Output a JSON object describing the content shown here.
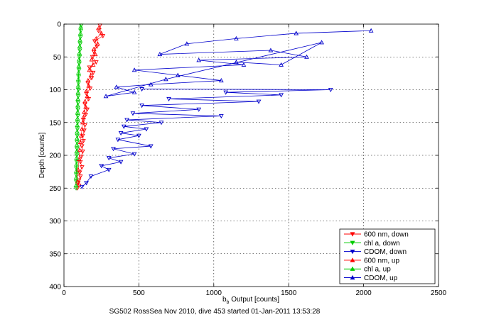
{
  "chart_data": {
    "type": "scatter",
    "title": "",
    "xlabel_main": "b",
    "xlabel_sub": "b",
    "xlabel_rest": " Output [counts]",
    "ylabel": "Depth [counts]",
    "caption": "SG502 RossSea Nov 2010, dive 453 started 01-Jan-2011 13:53:28",
    "xlim": [
      0,
      2500
    ],
    "ylim": [
      0,
      400
    ],
    "y_reversed": true,
    "grid": true,
    "legend_position": "bottom-right",
    "xticks": [
      "0",
      "500",
      "1000",
      "1500",
      "2000",
      "2500"
    ],
    "yticks": [
      "0",
      "50",
      "100",
      "150",
      "200",
      "250",
      "300",
      "350",
      "400"
    ],
    "series": [
      {
        "name": "600 nm, down",
        "color": "#ff0000",
        "marker": "triangle-down",
        "x": [
          240,
          230,
          260,
          205,
          220,
          200,
          190,
          215,
          170,
          195,
          185,
          160,
          175,
          150,
          165,
          140,
          155,
          145,
          130,
          140,
          135,
          125,
          130,
          120,
          125,
          115,
          110,
          120,
          105,
          110,
          100,
          95,
          100,
          90
        ],
        "y": [
          2,
          10,
          18,
          26,
          34,
          42,
          50,
          58,
          66,
          74,
          82,
          90,
          98,
          106,
          114,
          122,
          130,
          138,
          146,
          154,
          162,
          170,
          178,
          186,
          194,
          202,
          210,
          218,
          226,
          232,
          238,
          242,
          246,
          250
        ]
      },
      {
        "name": "chl a, down",
        "color": "#00cc00",
        "marker": "triangle-down",
        "x": [
          115,
          112,
          110,
          108,
          106,
          104,
          102,
          100,
          98,
          97,
          96,
          95,
          94,
          93,
          92,
          91,
          90,
          89,
          88,
          87,
          86,
          85,
          84,
          83,
          82,
          81
        ],
        "y": [
          2,
          10,
          20,
          30,
          40,
          50,
          60,
          70,
          80,
          90,
          100,
          110,
          120,
          130,
          140,
          150,
          160,
          170,
          180,
          190,
          200,
          210,
          220,
          230,
          240,
          250
        ]
      },
      {
        "name": "CDOM, down",
        "color": "#0000cc",
        "marker": "triangle-down",
        "x": [
          520,
          1780,
          1080,
          1450,
          700,
          1300,
          520,
          900,
          460,
          1050,
          420,
          650,
          400,
          550,
          380,
          500,
          360,
          580,
          330,
          470,
          300,
          380,
          250,
          300,
          180,
          150,
          120
        ],
        "y": [
          99,
          100,
          104,
          108,
          114,
          118,
          124,
          130,
          136,
          140,
          146,
          150,
          156,
          160,
          166,
          170,
          176,
          186,
          190,
          198,
          204,
          210,
          216,
          222,
          232,
          242,
          248
        ]
      },
      {
        "name": "600 nm, up",
        "color": "#ff0000",
        "marker": "triangle-up",
        "x": [
          235,
          250,
          215,
          225,
          200,
          210,
          185,
          195,
          170,
          180,
          160,
          165,
          150,
          155,
          140,
          145,
          135,
          130,
          125,
          120,
          115,
          110,
          105,
          100,
          95,
          90
        ],
        "y": [
          5,
          14,
          22,
          30,
          38,
          46,
          54,
          62,
          70,
          78,
          86,
          94,
          102,
          110,
          118,
          126,
          134,
          142,
          150,
          160,
          170,
          180,
          192,
          206,
          222,
          240
        ]
      },
      {
        "name": "chl a, up",
        "color": "#00cc00",
        "marker": "triangle-up",
        "x": [
          112,
          110,
          107,
          105,
          103,
          101,
          99,
          97,
          96,
          95,
          94,
          93,
          92,
          91,
          90,
          89,
          88,
          87,
          86,
          85,
          84,
          83,
          82,
          81,
          80
        ],
        "y": [
          4,
          14,
          24,
          34,
          44,
          54,
          64,
          74,
          84,
          94,
          104,
          114,
          124,
          134,
          144,
          154,
          164,
          174,
          184,
          194,
          204,
          214,
          224,
          234,
          246
        ]
      },
      {
        "name": "CDOM, up",
        "color": "#0000cc",
        "marker": "triangle-up",
        "x": [
          2050,
          1550,
          1150,
          820,
          640,
          1380,
          1620,
          900,
          1200,
          470,
          760,
          1050,
          580,
          350,
          470,
          280,
          680,
          1720,
          1450,
          1150
        ],
        "y": [
          10,
          14,
          22,
          30,
          46,
          40,
          50,
          55,
          62,
          70,
          78,
          86,
          92,
          96,
          104,
          110,
          84,
          28,
          62,
          58
        ]
      }
    ]
  }
}
